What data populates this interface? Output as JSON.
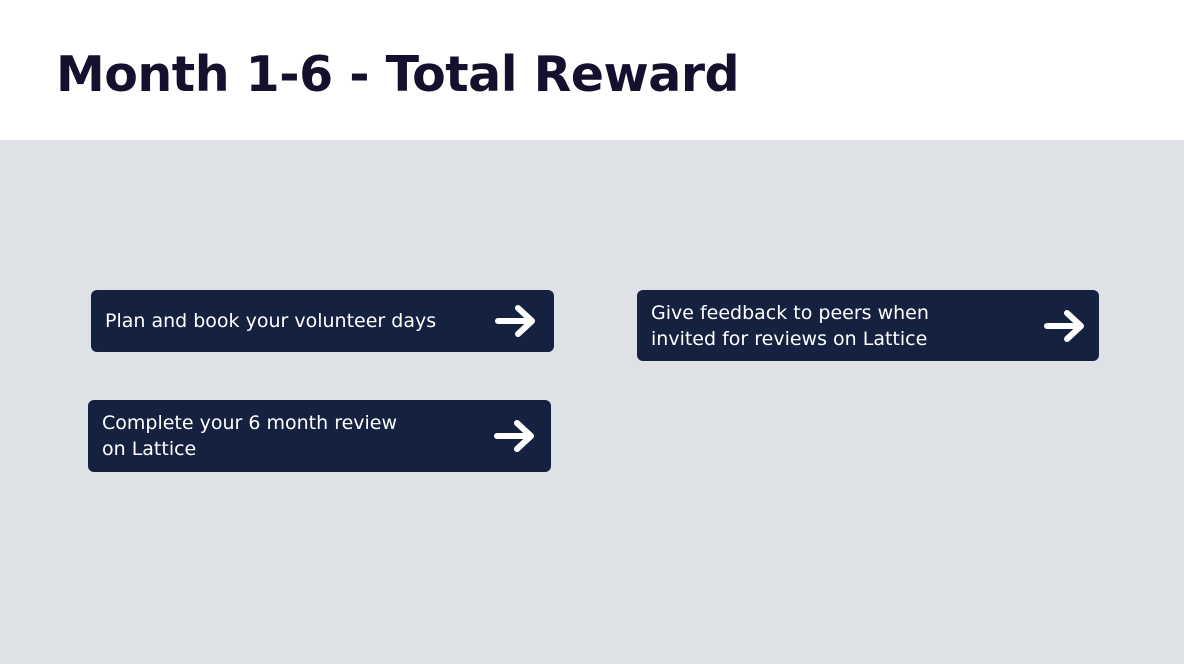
{
  "header": {
    "title": "Month 1-6 - Total Reward"
  },
  "cards": [
    {
      "label": "Plan and book your volunteer days",
      "icon": "arrow-right-icon"
    },
    {
      "label": "Give feedback to peers when\ninvited for reviews on Lattice",
      "icon": "arrow-right-icon"
    },
    {
      "label": "Complete your 6 month review\non Lattice",
      "icon": "arrow-right-icon"
    }
  ],
  "colors": {
    "title_text": "#14102e",
    "background": "#dee2e6",
    "card_background": "#142240",
    "card_text": "#ffffff"
  }
}
